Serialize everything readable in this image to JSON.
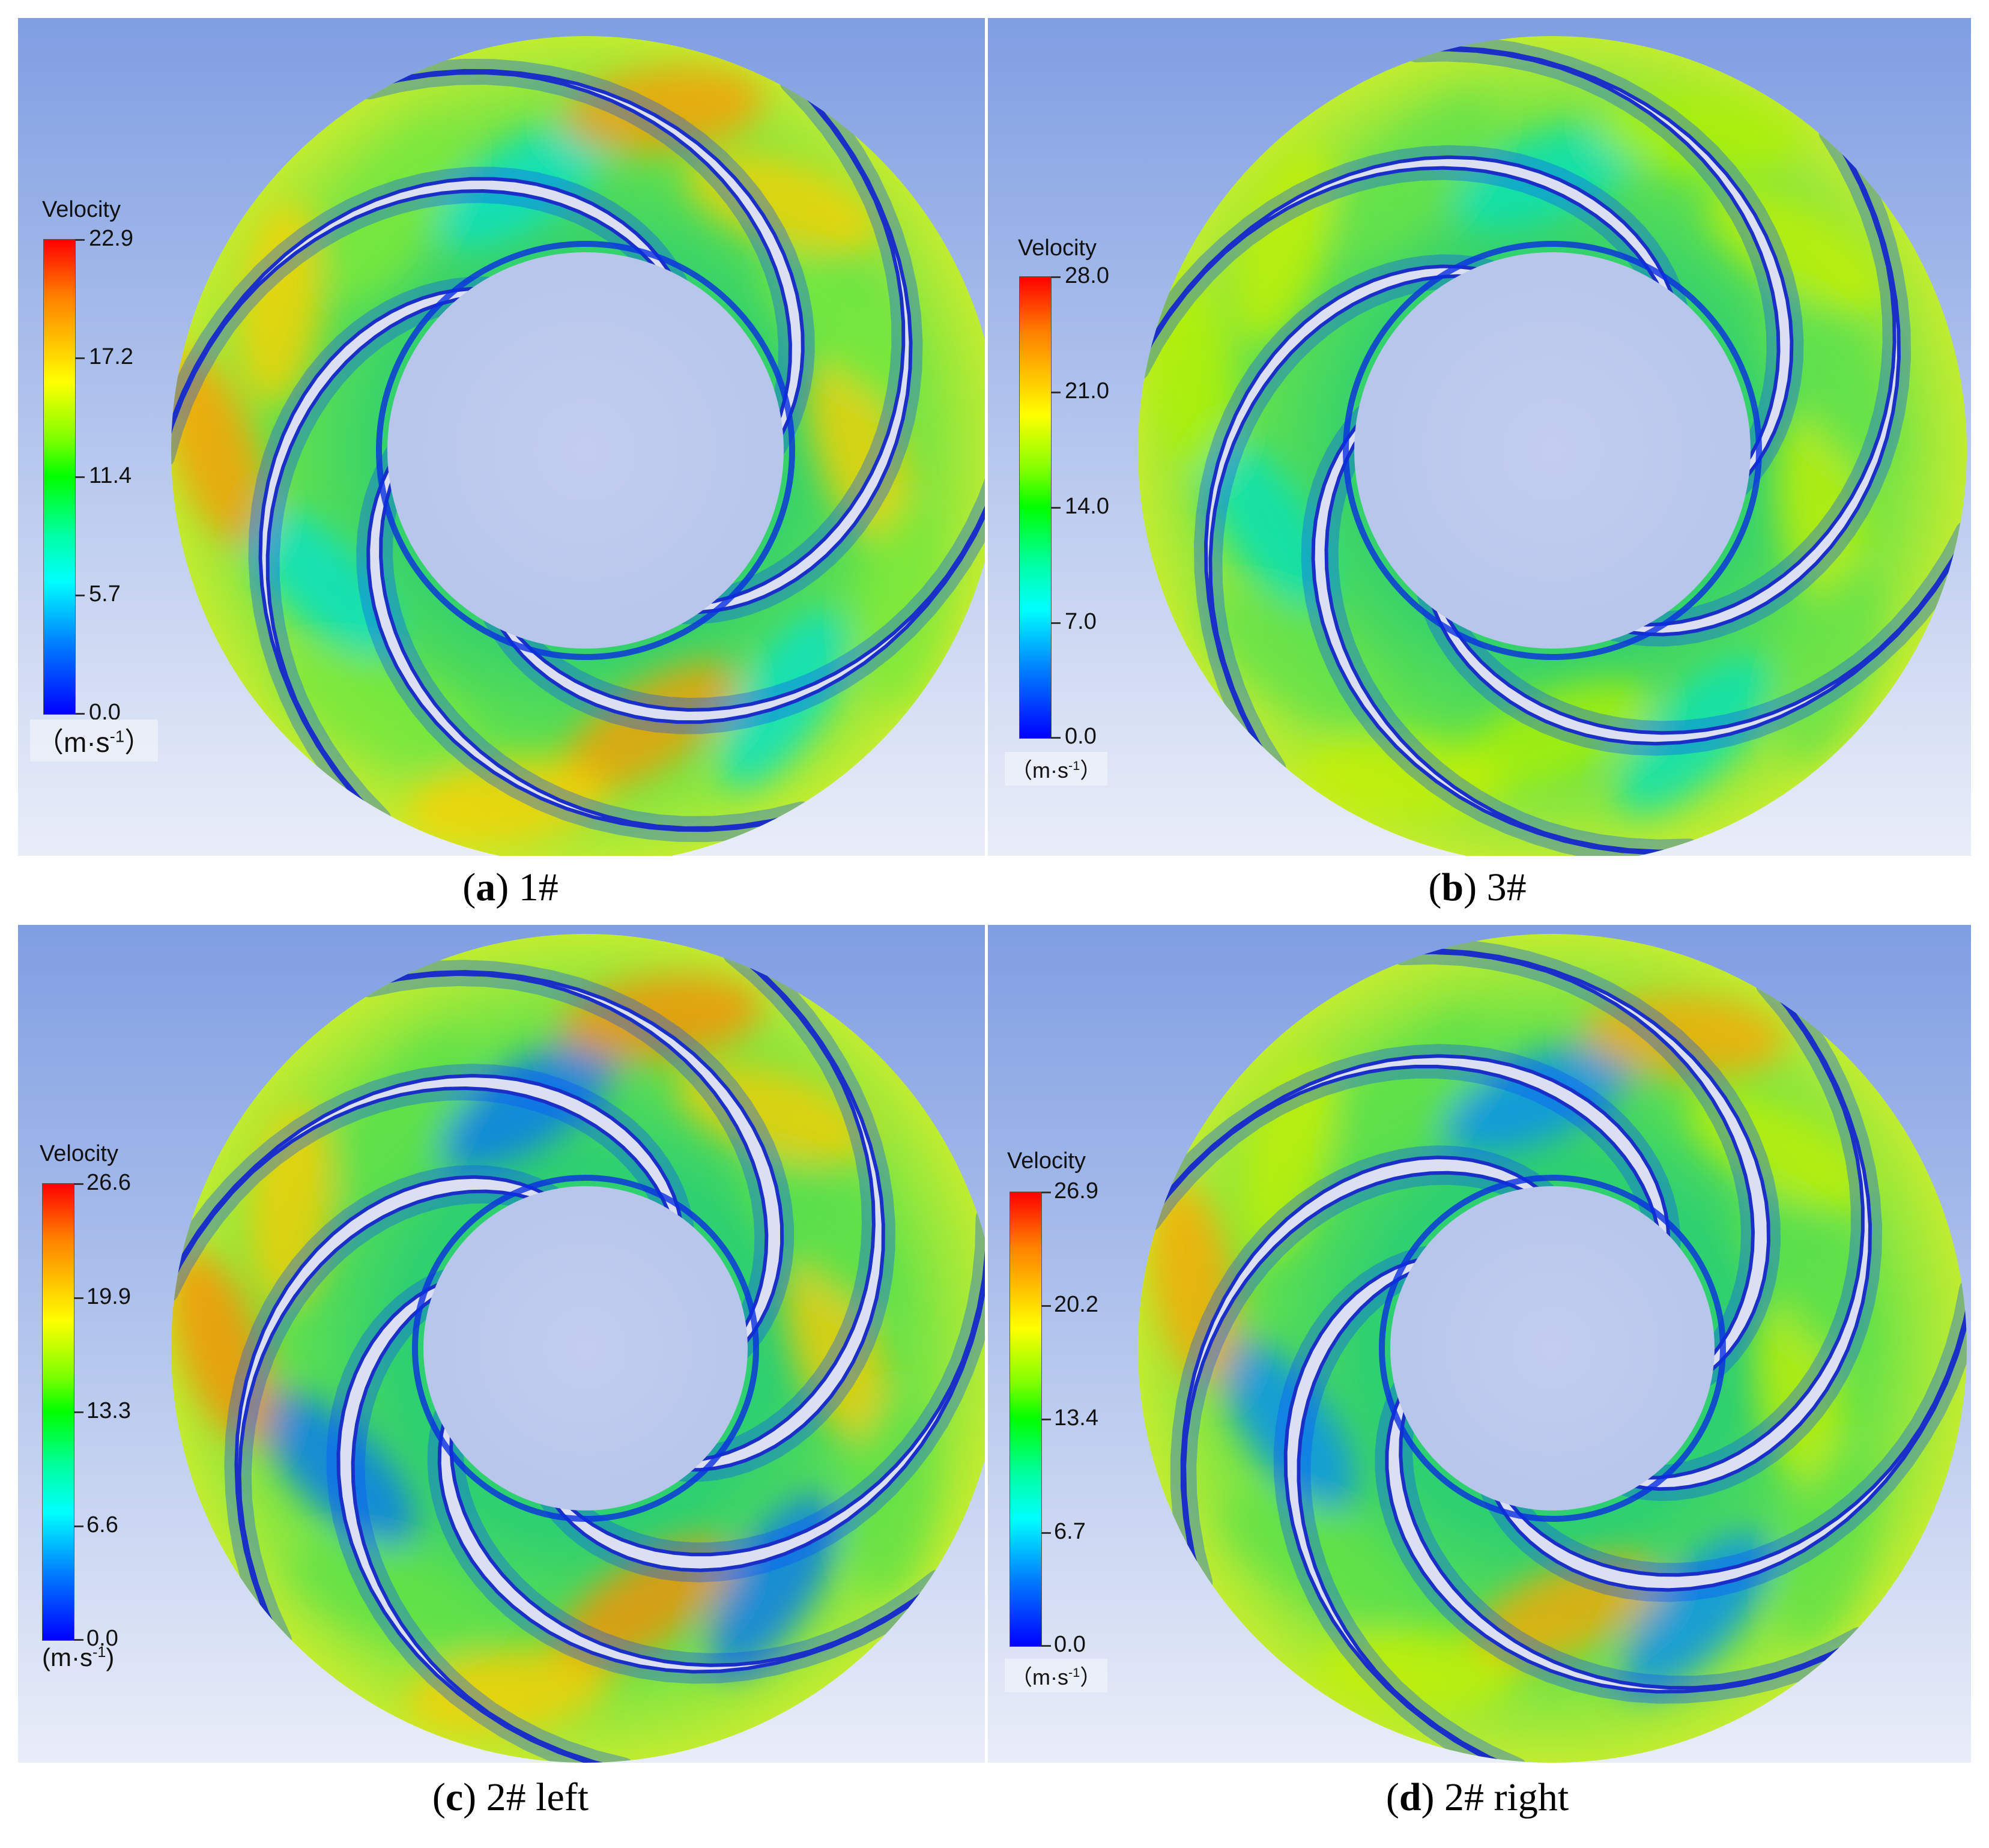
{
  "colors": {
    "bg_top": "#7f9ee2",
    "bg_bottom": "#e9edf8",
    "hub": "#b8c6ec",
    "blade": "#dcdff2",
    "blade_edge": "#1a2fc8",
    "field_base": "#66e24a"
  },
  "panels": [
    {
      "id": "a",
      "legend_title": "Velocity",
      "ticks": [
        "22.9",
        "17.2",
        "11.4",
        "5.7",
        "0.0"
      ],
      "unit": "m·s",
      "unit_exp": "-1",
      "caption_letter": "a",
      "caption_text": "1#"
    },
    {
      "id": "b",
      "legend_title": "Velocity",
      "ticks": [
        "28.0",
        "21.0",
        "14.0",
        "7.0",
        "0.0"
      ],
      "unit": "m·s",
      "unit_exp": "-1",
      "caption_letter": "b",
      "caption_text": "3#"
    },
    {
      "id": "c",
      "legend_title": "Velocity",
      "ticks": [
        "26.6",
        "19.9",
        "13.3",
        "6.6",
        "0.0"
      ],
      "unit": "m·s",
      "unit_exp": "-1",
      "caption_letter": "c",
      "caption_text": "2# left"
    },
    {
      "id": "d",
      "legend_title": "Velocity",
      "ticks": [
        "26.9",
        "20.2",
        "13.4",
        "6.7",
        "0.0"
      ],
      "unit": "m·s",
      "unit_exp": "-1",
      "caption_letter": "d",
      "caption_text": "2# right"
    }
  ]
}
